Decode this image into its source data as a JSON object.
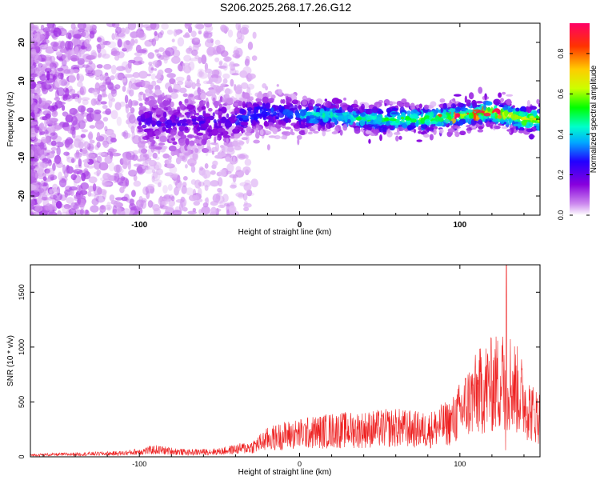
{
  "title": "S206.2025.268.17.26.G12",
  "chart_data": [
    {
      "type": "heatmap",
      "xlabel": "Height of straight line (km)",
      "ylabel": "Frequency (Hz)",
      "xlim": [
        -168,
        150
      ],
      "ylim": [
        -25,
        25
      ],
      "x_ticks": [
        -100,
        0,
        100
      ],
      "y_ticks": [
        -20,
        -10,
        0,
        10,
        20
      ],
      "colorbar": {
        "label": "Normalized spectral amplitude",
        "range": [
          0,
          0.95
        ],
        "ticks": [
          0.0,
          0.2,
          0.4,
          0.6,
          0.8
        ],
        "colormap": [
          "#ffffff",
          "#cc88ee",
          "#8800dd",
          "#2200ff",
          "#00aaff",
          "#00ffcc",
          "#00ff00",
          "#ccff00",
          "#ffcc00",
          "#ff3300",
          "#ff0066"
        ]
      },
      "ridge_frequency_hz": [
        {
          "x": -60,
          "y": -1
        },
        {
          "x": -40,
          "y": 0
        },
        {
          "x": -20,
          "y": 2
        },
        {
          "x": 0,
          "y": 1
        },
        {
          "x": 20,
          "y": 1
        },
        {
          "x": 40,
          "y": 0
        },
        {
          "x": 60,
          "y": 0
        },
        {
          "x": 80,
          "y": 0
        },
        {
          "x": 100,
          "y": 1
        },
        {
          "x": 120,
          "y": 2
        },
        {
          "x": 140,
          "y": 0
        }
      ]
    },
    {
      "type": "line",
      "xlabel": "Height of straight line (km)",
      "ylabel": "SNR (10 * v/v)",
      "xlim": [
        -168,
        150
      ],
      "ylim": [
        0,
        1750
      ],
      "x_ticks": [
        -100,
        0,
        100
      ],
      "y_ticks": [
        0,
        500,
        1000,
        1500
      ],
      "series": [
        {
          "color": "#ee2222",
          "envelope": [
            {
              "x": -168,
              "y": 20
            },
            {
              "x": -140,
              "y": 30
            },
            {
              "x": -110,
              "y": 40
            },
            {
              "x": -90,
              "y": 80
            },
            {
              "x": -70,
              "y": 50
            },
            {
              "x": -50,
              "y": 60
            },
            {
              "x": -30,
              "y": 110
            },
            {
              "x": -20,
              "y": 200
            },
            {
              "x": -10,
              "y": 240
            },
            {
              "x": 0,
              "y": 260
            },
            {
              "x": 20,
              "y": 300
            },
            {
              "x": 40,
              "y": 310
            },
            {
              "x": 60,
              "y": 330
            },
            {
              "x": 80,
              "y": 300
            },
            {
              "x": 95,
              "y": 400
            },
            {
              "x": 105,
              "y": 620
            },
            {
              "x": 115,
              "y": 780
            },
            {
              "x": 125,
              "y": 850
            },
            {
              "x": 130,
              "y": 900
            },
            {
              "x": 138,
              "y": 700
            },
            {
              "x": 145,
              "y": 500
            },
            {
              "x": 150,
              "y": 450
            }
          ],
          "peak": {
            "x": 129,
            "y": 1750
          }
        }
      ]
    }
  ]
}
